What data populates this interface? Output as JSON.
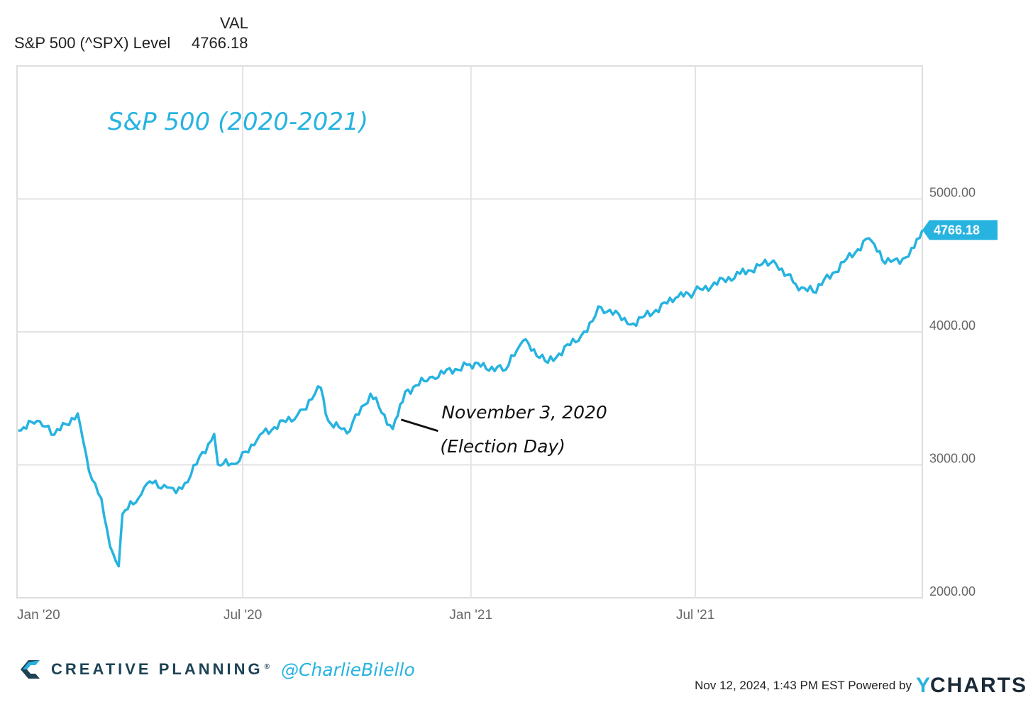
{
  "legend": {
    "column_header": "VAL",
    "series_name": "S&P 500 (^SPX) Level",
    "series_value": "4766.18"
  },
  "colors": {
    "series": "#27b3e0",
    "grid": "#e3e3e3",
    "axis_text": "#666666",
    "annotation": "#111111",
    "brand_dark": "#1d4355"
  },
  "chart_data": {
    "type": "line",
    "title": "S&P 500 (2020-2021)",
    "xlabel": "",
    "ylabel": "",
    "x_tick_labels": [
      "Jan '20",
      "Jul '20",
      "Jan '21",
      "Jul '21"
    ],
    "x_ticks": [
      "2020-01-01",
      "2020-07-01",
      "2021-01-01",
      "2021-07-01"
    ],
    "xlim": [
      "2020-01-01",
      "2021-12-31"
    ],
    "y_tick_labels": [
      "2000.00",
      "3000.00",
      "4000.00",
      "5000.00"
    ],
    "y_ticks": [
      2000,
      3000,
      4000,
      5000
    ],
    "ylim": [
      2000,
      6000
    ],
    "grid": true,
    "last_value_label": "4766.18",
    "series": [
      {
        "name": "S&P 500 (^SPX) Level",
        "x": [
          "2020-01-02",
          "2020-01-17",
          "2020-01-31",
          "2020-02-19",
          "2020-02-28",
          "2020-03-09",
          "2020-03-16",
          "2020-03-23",
          "2020-03-26",
          "2020-04-08",
          "2020-04-17",
          "2020-05-01",
          "2020-05-13",
          "2020-06-08",
          "2020-06-11",
          "2020-06-26",
          "2020-07-15",
          "2020-08-14",
          "2020-09-02",
          "2020-09-08",
          "2020-09-23",
          "2020-10-12",
          "2020-10-30",
          "2020-11-03",
          "2020-11-09",
          "2020-12-01",
          "2020-12-31",
          "2021-01-29",
          "2021-02-12",
          "2021-03-04",
          "2021-03-31",
          "2021-04-16",
          "2021-05-12",
          "2021-06-15",
          "2021-06-30",
          "2021-08-06",
          "2021-09-02",
          "2021-09-20",
          "2021-10-04",
          "2021-11-18",
          "2021-12-01",
          "2021-12-20",
          "2021-12-31"
        ],
        "y": [
          3258,
          3330,
          3226,
          3386,
          2954,
          2746,
          2386,
          2237,
          2630,
          2750,
          2875,
          2830,
          2820,
          3232,
          3002,
          3009,
          3227,
          3373,
          3580,
          3332,
          3237,
          3535,
          3270,
          3370,
          3550,
          3662,
          3756,
          3714,
          3934,
          3768,
          3973,
          4185,
          4063,
          4255,
          4298,
          4437,
          4537,
          4358,
          4300,
          4704,
          4513,
          4568,
          4766
        ]
      }
    ],
    "annotations": [
      {
        "text_line1": "November 3, 2020",
        "text_line2": "(Election Day)",
        "x": "2020-11-04",
        "y": 3340
      }
    ]
  },
  "footer": {
    "brand": "CREATIVE PLANNING",
    "reg_mark": "®",
    "handle": "@CharlieBilello",
    "timestamp": "Nov 12, 2024, 1:43 PM EST Powered by",
    "ycharts_y": "Y",
    "ycharts_rest": "CHARTS"
  }
}
